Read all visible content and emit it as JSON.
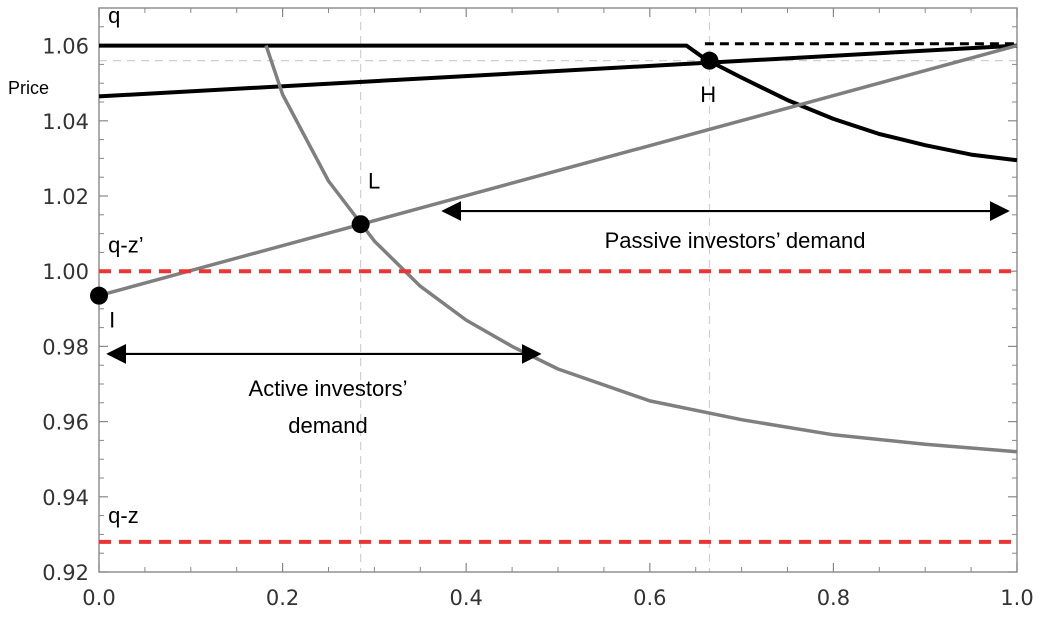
{
  "chart_data": {
    "type": "line",
    "xlim": [
      0.0,
      1.0
    ],
    "ylim": [
      0.92,
      1.07
    ],
    "x_ticks": [
      "0.0",
      "0.2",
      "0.4",
      "0.6",
      "0.8",
      "1.0"
    ],
    "y_ticks": [
      "0.92",
      "0.94",
      "0.96",
      "0.98",
      "1.00",
      "1.02",
      "1.04",
      "1.06"
    ],
    "ylabel": "Price",
    "grid": "dashed vertical lines at x=0.285, x=0.665; dashed horizontal line at y=1.056",
    "colors": {
      "black": "#000000",
      "gray": "#7f7f7f",
      "red": "#ee3333",
      "grid": "#d0d0d0"
    },
    "series": [
      {
        "style": "solid-black",
        "x": [
          0.0,
          0.64,
          0.66,
          0.7,
          0.75,
          0.8,
          0.85,
          0.9,
          0.95,
          1.0
        ],
        "y": [
          1.06,
          1.06,
          1.0565,
          1.0515,
          1.0455,
          1.0405,
          1.0365,
          1.0335,
          1.031,
          1.0295
        ]
      },
      {
        "style": "solid-black",
        "x": [
          0.0,
          1.0
        ],
        "y": [
          1.0465,
          1.06
        ]
      },
      {
        "style": "dashed-black",
        "x": [
          0.66,
          1.0
        ],
        "y": [
          1.0605,
          1.0605
        ]
      },
      {
        "style": "solid-gray",
        "x": [
          0.0,
          1.0
        ],
        "y": [
          0.9935,
          1.06
        ]
      },
      {
        "style": "solid-gray",
        "x": [
          0.182,
          0.2,
          0.25,
          0.3,
          0.35,
          0.4,
          0.45,
          0.5,
          0.6,
          0.7,
          0.8,
          0.9,
          1.0
        ],
        "y": [
          1.06,
          1.047,
          1.024,
          1.008,
          0.996,
          0.987,
          0.98,
          0.974,
          0.9655,
          0.9605,
          0.9565,
          0.954,
          0.952
        ]
      },
      {
        "style": "dashed-red",
        "x": [
          0.0,
          1.0
        ],
        "y": [
          1.0,
          1.0
        ]
      },
      {
        "style": "dashed-red",
        "x": [
          0.0,
          1.0
        ],
        "y": [
          0.928,
          0.928
        ]
      }
    ],
    "points": [
      {
        "label": "I",
        "x": 0.0,
        "y": 0.9935
      },
      {
        "label": "L",
        "x": 0.285,
        "y": 1.0125
      },
      {
        "label": "H",
        "x": 0.665,
        "y": 1.056
      }
    ],
    "annotations": [
      {
        "text": "q",
        "x": 0.01,
        "y": 1.066
      },
      {
        "text": "q-z’",
        "x": 0.01,
        "y": 1.005
      },
      {
        "text": "q-z",
        "x": 0.01,
        "y": 0.933
      },
      {
        "text": "L",
        "x": 0.293,
        "y": 1.022
      },
      {
        "text": "H",
        "x": 0.655,
        "y": 1.045
      },
      {
        "text": "I",
        "x": 0.011,
        "y": 0.985
      }
    ],
    "arrows": [
      {
        "label": "Active investors’ demand",
        "label_lines": [
          "Active investors’",
          "demand"
        ],
        "x": [
          0.01,
          0.48
        ],
        "y": 0.978
      },
      {
        "label": "Passive investors’ demand",
        "label_lines": [
          "Passive investors’ demand"
        ],
        "x": [
          0.375,
          0.99
        ],
        "y": 1.016
      }
    ]
  }
}
